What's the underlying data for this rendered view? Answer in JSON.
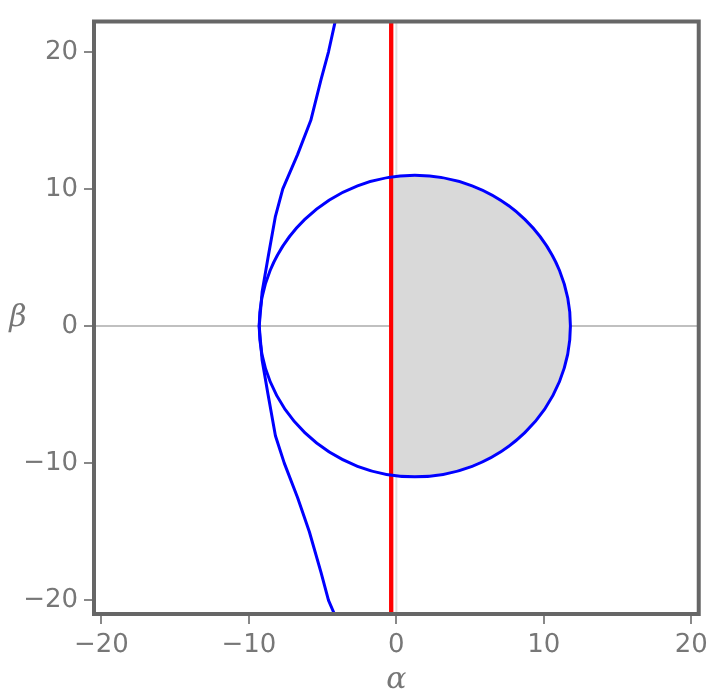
{
  "chart_data": {
    "type": "line",
    "xlabel": "α",
    "ylabel": "β",
    "xlim": [
      -20.5,
      20.5
    ],
    "ylim": [
      -21,
      22.2
    ],
    "xticks": [
      -20,
      -10,
      0,
      10,
      20
    ],
    "yticks": [
      -20,
      -10,
      0,
      10,
      20
    ],
    "grid": false,
    "legend": false,
    "marker": "none",
    "line_style": "solid",
    "ref_lines": [
      {
        "axis": "y",
        "value": 0,
        "color": "#c0c0c0"
      },
      {
        "axis": "x",
        "value": 0,
        "color": "#e0e0e0"
      },
      {
        "axis": "x",
        "value": -0.35,
        "color": "#ff0000"
      }
    ],
    "series": [
      {
        "type": "area",
        "color": "#d9d9d9",
        "x": [
          -0.35,
          1.3,
          4.0,
          6.5,
          8.7,
          10.4,
          11.4,
          11.8
        ],
        "values": [
          10.9,
          11.0,
          10.6,
          9.5,
          7.8,
          5.5,
          2.9,
          0
        ]
      },
      {
        "type": "area",
        "color": "#d9d9d9",
        "x": [
          -0.35,
          1.3,
          4.0,
          6.5,
          8.7,
          10.4,
          11.4,
          11.8
        ],
        "values": [
          -10.9,
          -11.0,
          -10.6,
          -9.5,
          -7.8,
          -5.5,
          -2.9,
          0
        ]
      },
      {
        "type": "line",
        "color": "#0000ff",
        "x": [
          -4.15,
          -4.6,
          -5.1,
          -5.8,
          -6.7,
          -7.7,
          -8.2,
          -8.7,
          -9.1,
          -9.3,
          -9.1,
          -8.7,
          -8.2,
          -7.6,
          -6.7,
          -5.9,
          -5.1,
          -4.6,
          -4.2
        ],
        "values": [
          22.2,
          20,
          18,
          15,
          12.5,
          10,
          8,
          5,
          2.5,
          0,
          -2.5,
          -5,
          -8,
          -10,
          -12.5,
          -15,
          -18,
          -20,
          -21
        ]
      }
    ]
  }
}
